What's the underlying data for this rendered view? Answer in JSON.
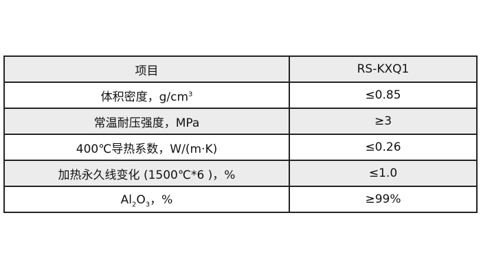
{
  "table": {
    "header": [
      "项目",
      "RS-KXQ1"
    ],
    "rows": [
      {
        "item": "体积密度，g/cm",
        "item_sup": "3",
        "value": "≤0.85"
      },
      {
        "item": "常温耐压强度，MPa",
        "value": "≥3"
      },
      {
        "item": "400℃导热系数，W/(m·K)",
        "value": "≤0.26"
      },
      {
        "item": "加热永久线变化 (1500℃*6 )，%",
        "value": "≤1.0"
      },
      {
        "item_parts": [
          "Al",
          "2",
          "O",
          "3",
          "，%"
        ],
        "value": "≥99%"
      }
    ]
  }
}
